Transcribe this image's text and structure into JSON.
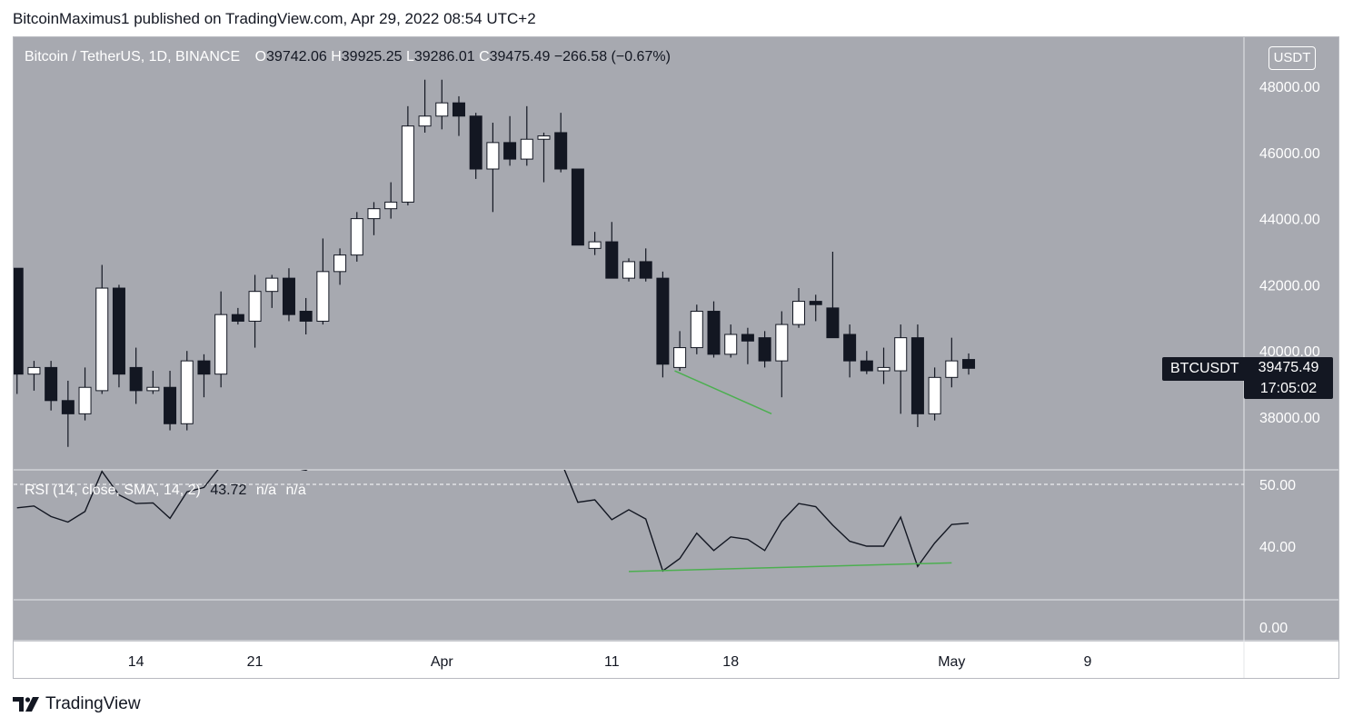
{
  "header": {
    "publish_line": "BitcoinMaximus1 published on TradingView.com, Apr 29, 2022 08:54 UTC+2"
  },
  "legend": {
    "symbol": "Bitcoin / TetherUS, 1D, BINANCE",
    "open_key": "O",
    "open_val": "39742.06",
    "high_key": "H",
    "high_val": "39925.25",
    "low_key": "L",
    "low_val": "39286.01",
    "close_key": "C",
    "close_val": "39475.49",
    "change": "−266.58 (−0.67%)"
  },
  "rsi_legend": {
    "label": "RSI (14, close, SMA, 14, 2)",
    "value": "43.72",
    "na1": "n/a",
    "na2": "n/a"
  },
  "price_axis": {
    "currency": "USDT",
    "symbol_tag": "BTCUSDT",
    "last_price": "39475.49",
    "countdown": "17:05:02"
  },
  "brand": {
    "name": "TradingView",
    "icon": "tradingview-logo-icon"
  },
  "colors": {
    "background": "#a7a9b0",
    "bull_body": "#ffffff",
    "bear_body": "#131722",
    "wick": "#131722",
    "trendline": "#4caf50",
    "rsi_line": "#131722"
  },
  "chart_data": [
    {
      "type": "candlestick",
      "title": "Bitcoin / TetherUS, 1D, BINANCE",
      "ylim": [
        36000,
        49000
      ],
      "y_ticks": [
        "38000.00",
        "40000.00",
        "42000.00",
        "44000.00",
        "46000.00",
        "48000.00"
      ],
      "y_tick_values": [
        38000,
        40000,
        42000,
        44000,
        46000,
        48000
      ],
      "x_ticks": [
        {
          "index": 7,
          "label": "14"
        },
        {
          "index": 14,
          "label": "21"
        },
        {
          "index": 25,
          "label": "Apr"
        },
        {
          "index": 35,
          "label": "11"
        },
        {
          "index": 42,
          "label": "18"
        },
        {
          "index": 55,
          "label": "May"
        },
        {
          "index": 63,
          "label": "9"
        }
      ],
      "x_range": [
        -0.2,
        72.2
      ],
      "candles": [
        {
          "o": 42500,
          "h": 42500,
          "l": 38700,
          "c": 39300
        },
        {
          "o": 39300,
          "h": 39700,
          "l": 38800,
          "c": 39500
        },
        {
          "o": 39500,
          "h": 39700,
          "l": 38200,
          "c": 38500
        },
        {
          "o": 38500,
          "h": 39100,
          "l": 37100,
          "c": 38100
        },
        {
          "o": 38100,
          "h": 39500,
          "l": 37900,
          "c": 38900
        },
        {
          "o": 38800,
          "h": 42600,
          "l": 38700,
          "c": 41900
        },
        {
          "o": 41900,
          "h": 42000,
          "l": 38900,
          "c": 39300
        },
        {
          "o": 39500,
          "h": 40100,
          "l": 38400,
          "c": 38800
        },
        {
          "o": 38800,
          "h": 39400,
          "l": 38700,
          "c": 38900
        },
        {
          "o": 38900,
          "h": 39400,
          "l": 37600,
          "c": 37800
        },
        {
          "o": 37800,
          "h": 40000,
          "l": 37600,
          "c": 39700
        },
        {
          "o": 39700,
          "h": 39900,
          "l": 38600,
          "c": 39300
        },
        {
          "o": 39300,
          "h": 41800,
          "l": 38900,
          "c": 41100
        },
        {
          "o": 41100,
          "h": 41300,
          "l": 40800,
          "c": 40900
        },
        {
          "o": 40900,
          "h": 42300,
          "l": 40100,
          "c": 41800
        },
        {
          "o": 41800,
          "h": 42300,
          "l": 41300,
          "c": 42200
        },
        {
          "o": 42200,
          "h": 42500,
          "l": 40900,
          "c": 41100
        },
        {
          "o": 41200,
          "h": 41600,
          "l": 40500,
          "c": 40900
        },
        {
          "o": 40900,
          "h": 43400,
          "l": 40800,
          "c": 42400
        },
        {
          "o": 42400,
          "h": 43100,
          "l": 42000,
          "c": 42900
        },
        {
          "o": 42900,
          "h": 44200,
          "l": 42700,
          "c": 44000
        },
        {
          "o": 44000,
          "h": 44500,
          "l": 43500,
          "c": 44300
        },
        {
          "o": 44300,
          "h": 45100,
          "l": 44000,
          "c": 44500
        },
        {
          "o": 44500,
          "h": 47400,
          "l": 44400,
          "c": 46800
        },
        {
          "o": 46800,
          "h": 48200,
          "l": 46600,
          "c": 47100
        },
        {
          "o": 47100,
          "h": 48200,
          "l": 46700,
          "c": 47500
        },
        {
          "o": 47500,
          "h": 47700,
          "l": 46500,
          "c": 47100
        },
        {
          "o": 47100,
          "h": 47200,
          "l": 45200,
          "c": 45500
        },
        {
          "o": 45500,
          "h": 46900,
          "l": 44200,
          "c": 46300
        },
        {
          "o": 46300,
          "h": 47100,
          "l": 45600,
          "c": 45800
        },
        {
          "o": 45800,
          "h": 47400,
          "l": 45600,
          "c": 46400
        },
        {
          "o": 46400,
          "h": 46600,
          "l": 45100,
          "c": 46500
        },
        {
          "o": 46600,
          "h": 47200,
          "l": 45400,
          "c": 45500
        },
        {
          "o": 45500,
          "h": 45500,
          "l": 43200,
          "c": 43200
        },
        {
          "o": 43100,
          "h": 43600,
          "l": 42900,
          "c": 43300
        },
        {
          "o": 43300,
          "h": 43900,
          "l": 42200,
          "c": 42200
        },
        {
          "o": 42200,
          "h": 42800,
          "l": 42100,
          "c": 42700
        },
        {
          "o": 42700,
          "h": 43100,
          "l": 42100,
          "c": 42200
        },
        {
          "o": 42200,
          "h": 42400,
          "l": 39200,
          "c": 39600
        },
        {
          "o": 39500,
          "h": 40600,
          "l": 39400,
          "c": 40100
        },
        {
          "o": 40100,
          "h": 41400,
          "l": 39900,
          "c": 41200
        },
        {
          "o": 41200,
          "h": 41500,
          "l": 39800,
          "c": 39900
        },
        {
          "o": 39900,
          "h": 40800,
          "l": 39800,
          "c": 40500
        },
        {
          "o": 40500,
          "h": 40700,
          "l": 39600,
          "c": 40300
        },
        {
          "o": 40400,
          "h": 40600,
          "l": 39500,
          "c": 39700
        },
        {
          "o": 39700,
          "h": 41200,
          "l": 38600,
          "c": 40800
        },
        {
          "o": 40800,
          "h": 41900,
          "l": 40700,
          "c": 41500
        },
        {
          "o": 41500,
          "h": 41700,
          "l": 40900,
          "c": 41400
        },
        {
          "o": 41300,
          "h": 43000,
          "l": 40400,
          "c": 40400
        },
        {
          "o": 40500,
          "h": 40800,
          "l": 39200,
          "c": 39700
        },
        {
          "o": 39700,
          "h": 40000,
          "l": 39300,
          "c": 39400
        },
        {
          "o": 39400,
          "h": 40100,
          "l": 39000,
          "c": 39500
        },
        {
          "o": 39400,
          "h": 40800,
          "l": 38100,
          "c": 40400
        },
        {
          "o": 40400,
          "h": 40800,
          "l": 37700,
          "c": 38100
        },
        {
          "o": 38100,
          "h": 39500,
          "l": 37900,
          "c": 39200
        },
        {
          "o": 39200,
          "h": 40400,
          "l": 38900,
          "c": 39700
        },
        {
          "o": 39742.06,
          "h": 39925.25,
          "l": 39286.01,
          "c": 39475.49
        }
      ],
      "trendline": {
        "x1": 38.7,
        "y1": 39400,
        "x2": 44.4,
        "y2": 38100,
        "color": "#4caf50"
      }
    },
    {
      "type": "line",
      "title": "RSI (14, close, SMA, 14, 2)",
      "ylim": [
        28,
        55
      ],
      "y_ticks": [
        "40.00",
        "50.00",
        "0.00"
      ],
      "y_tick_values": [
        40,
        50,
        0
      ],
      "series": [
        {
          "x_offset": 0,
          "values": [
            46.2,
            46.5,
            44.8,
            43.9,
            45.6,
            52.1,
            48.3,
            46.9,
            47.0,
            44.5,
            48.8,
            49.5,
            53.0,
            52.7,
            54.1,
            54.8,
            52.8,
            52.3,
            54.0,
            54.5,
            57.1,
            57.6,
            57.9,
            61.2,
            62.0,
            62.6,
            60.9,
            56.3,
            57.9,
            57.0,
            57.8,
            57.9,
            53.8,
            47.1,
            47.5,
            44.3,
            45.9,
            44.4,
            36.0,
            38.0,
            42.1,
            39.3,
            41.5,
            41.1,
            39.3,
            44.0,
            46.9,
            46.4,
            43.4,
            40.8,
            40.0,
            40.0,
            44.7,
            36.7,
            40.5,
            43.5,
            43.72
          ]
        },
        {
          "x_offset": 0,
          "values": []
        }
      ],
      "trendline": {
        "x1": 36.0,
        "y1": 35.9,
        "x2": 55.0,
        "y2": 37.3,
        "color": "#4caf50"
      },
      "midline": 50
    }
  ]
}
